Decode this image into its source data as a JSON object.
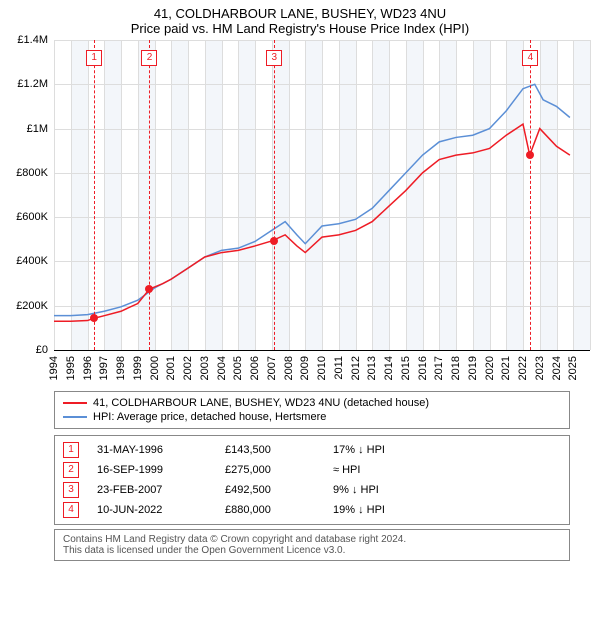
{
  "title": "41, COLDHARBOUR LANE, BUSHEY, WD23 4NU",
  "subtitle": "Price paid vs. HM Land Registry's House Price Index (HPI)",
  "chart": {
    "type": "line",
    "background_color": "#ffffff",
    "band_color": "#f3f6fa",
    "grid_color": "#dddddd",
    "x": {
      "min": 1994,
      "max": 2026,
      "tick_step": 1,
      "tick_labels_until": 2025,
      "label_fontsize": 11
    },
    "y": {
      "min": 0,
      "max": 1400000,
      "tick_step": 200000,
      "tick_labels": [
        "£0",
        "£200K",
        "£400K",
        "£600K",
        "£800K",
        "£1M",
        "£1.2M",
        "£1.4M"
      ],
      "label_fontsize": 11
    },
    "series": [
      {
        "name": "41, COLDHARBOUR LANE, BUSHEY, WD23 4NU (detached house)",
        "color": "#ee1c25",
        "line_width": 1.5,
        "points": [
          [
            1994.0,
            130000
          ],
          [
            1995.0,
            130000
          ],
          [
            1996.0,
            133000
          ],
          [
            1996.4,
            143500
          ],
          [
            1997.0,
            155000
          ],
          [
            1998.0,
            175000
          ],
          [
            1999.0,
            210000
          ],
          [
            1999.7,
            275000
          ],
          [
            2000.5,
            300000
          ],
          [
            2001.0,
            320000
          ],
          [
            2002.0,
            370000
          ],
          [
            2003.0,
            420000
          ],
          [
            2004.0,
            440000
          ],
          [
            2005.0,
            450000
          ],
          [
            2006.0,
            470000
          ],
          [
            2007.0,
            492500
          ],
          [
            2007.8,
            520000
          ],
          [
            2008.5,
            470000
          ],
          [
            2009.0,
            440000
          ],
          [
            2010.0,
            510000
          ],
          [
            2011.0,
            520000
          ],
          [
            2012.0,
            540000
          ],
          [
            2013.0,
            580000
          ],
          [
            2014.0,
            650000
          ],
          [
            2015.0,
            720000
          ],
          [
            2016.0,
            800000
          ],
          [
            2017.0,
            860000
          ],
          [
            2018.0,
            880000
          ],
          [
            2019.0,
            890000
          ],
          [
            2020.0,
            910000
          ],
          [
            2021.0,
            970000
          ],
          [
            2022.0,
            1020000
          ],
          [
            2022.4,
            880000
          ],
          [
            2023.0,
            1000000
          ],
          [
            2023.5,
            960000
          ],
          [
            2024.0,
            920000
          ],
          [
            2024.8,
            880000
          ]
        ]
      },
      {
        "name": "HPI: Average price, detached house, Hertsmere",
        "color": "#5b8fd6",
        "line_width": 1.5,
        "points": [
          [
            1994.0,
            155000
          ],
          [
            1995.0,
            155000
          ],
          [
            1996.0,
            160000
          ],
          [
            1997.0,
            175000
          ],
          [
            1998.0,
            195000
          ],
          [
            1999.0,
            225000
          ],
          [
            2000.0,
            280000
          ],
          [
            2001.0,
            320000
          ],
          [
            2002.0,
            370000
          ],
          [
            2003.0,
            420000
          ],
          [
            2004.0,
            450000
          ],
          [
            2005.0,
            460000
          ],
          [
            2006.0,
            490000
          ],
          [
            2007.0,
            540000
          ],
          [
            2007.8,
            580000
          ],
          [
            2008.5,
            520000
          ],
          [
            2009.0,
            480000
          ],
          [
            2010.0,
            560000
          ],
          [
            2011.0,
            570000
          ],
          [
            2012.0,
            590000
          ],
          [
            2013.0,
            640000
          ],
          [
            2014.0,
            720000
          ],
          [
            2015.0,
            800000
          ],
          [
            2016.0,
            880000
          ],
          [
            2017.0,
            940000
          ],
          [
            2018.0,
            960000
          ],
          [
            2019.0,
            970000
          ],
          [
            2020.0,
            1000000
          ],
          [
            2021.0,
            1080000
          ],
          [
            2022.0,
            1180000
          ],
          [
            2022.7,
            1200000
          ],
          [
            2023.2,
            1130000
          ],
          [
            2024.0,
            1100000
          ],
          [
            2024.8,
            1050000
          ]
        ]
      }
    ],
    "events": [
      {
        "n": "1",
        "year": 1996.4,
        "date": "31-MAY-1996",
        "price": "£143,500",
        "delta": "17% ↓ HPI",
        "y": 143500
      },
      {
        "n": "2",
        "year": 1999.7,
        "date": "16-SEP-1999",
        "price": "£275,000",
        "delta": "≈ HPI",
        "y": 275000
      },
      {
        "n": "3",
        "year": 2007.15,
        "date": "23-FEB-2007",
        "price": "£492,500",
        "delta": "9% ↓ HPI",
        "y": 492500
      },
      {
        "n": "4",
        "year": 2022.44,
        "date": "10-JUN-2022",
        "price": "£880,000",
        "delta": "19% ↓ HPI",
        "y": 880000
      }
    ],
    "marker_color": "#ee1c25",
    "marker_radius": 4
  },
  "legend": {
    "border_color": "#888888",
    "items": [
      {
        "color": "#ee1c25",
        "label": "41, COLDHARBOUR LANE, BUSHEY, WD23 4NU (detached house)"
      },
      {
        "color": "#5b8fd6",
        "label": "HPI: Average price, detached house, Hertsmere"
      }
    ]
  },
  "footer": {
    "line1": "Contains HM Land Registry data © Crown copyright and database right 2024.",
    "line2": "This data is licensed under the Open Government Licence v3.0."
  }
}
